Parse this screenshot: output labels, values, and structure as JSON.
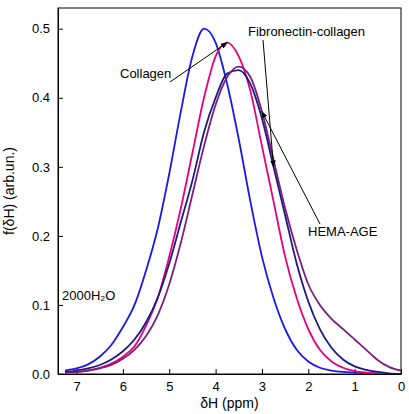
{
  "chart_data": {
    "type": "line",
    "x_label": "δH (ppm)",
    "y_label": "f(δH)  (arb.un.)",
    "x": [
      7.25,
      7,
      6.75,
      6.5,
      6.25,
      6,
      5.75,
      5.5,
      5.25,
      5,
      4.75,
      4.5,
      4.25,
      4,
      3.75,
      3.5,
      3.25,
      3,
      2.75,
      2.5,
      2.25,
      2,
      1.75,
      1.5,
      1.25,
      1,
      0.75,
      0.5,
      0.25,
      0
    ],
    "series": [
      {
        "name": "2000H₂O",
        "color": "#1a1ae6",
        "values": [
          0.005,
          0.008,
          0.014,
          0.025,
          0.042,
          0.068,
          0.1,
          0.15,
          0.21,
          0.29,
          0.38,
          0.46,
          0.5,
          0.48,
          0.42,
          0.34,
          0.25,
          0.17,
          0.11,
          0.065,
          0.035,
          0.018,
          0.009,
          0.005,
          0.003,
          0.002,
          0.001,
          0.001,
          0,
          0
        ]
      },
      {
        "name": "Collagen",
        "color": "#e6007e",
        "values": [
          0.002,
          0.003,
          0.005,
          0.009,
          0.015,
          0.025,
          0.04,
          0.07,
          0.11,
          0.17,
          0.24,
          0.32,
          0.4,
          0.46,
          0.48,
          0.46,
          0.41,
          0.33,
          0.25,
          0.17,
          0.11,
          0.065,
          0.035,
          0.018,
          0.009,
          0.004,
          0.002,
          0.001,
          0,
          0
        ]
      },
      {
        "name": "Fibronectin-collagen",
        "color": "#1a1a80",
        "values": [
          0.003,
          0.005,
          0.008,
          0.013,
          0.021,
          0.033,
          0.05,
          0.075,
          0.11,
          0.16,
          0.22,
          0.28,
          0.35,
          0.4,
          0.435,
          0.44,
          0.42,
          0.37,
          0.3,
          0.23,
          0.16,
          0.105,
          0.065,
          0.038,
          0.021,
          0.011,
          0.006,
          0.003,
          0.001,
          0
        ]
      },
      {
        "name": "HEMA-AGE",
        "color": "#7b1e7a",
        "values": [
          0.002,
          0.003,
          0.005,
          0.008,
          0.013,
          0.022,
          0.035,
          0.055,
          0.085,
          0.13,
          0.19,
          0.26,
          0.33,
          0.39,
          0.43,
          0.445,
          0.43,
          0.38,
          0.31,
          0.24,
          0.18,
          0.13,
          0.1,
          0.08,
          0.065,
          0.05,
          0.035,
          0.02,
          0.01,
          0.005
        ]
      }
    ],
    "xlim": [
      7.4,
      0
    ],
    "ylim": [
      0,
      0.53
    ],
    "xticks": [
      7,
      6,
      5,
      4,
      3,
      2,
      1,
      0
    ],
    "yticks": [
      {
        "value": 0,
        "label": "0.0"
      },
      0.1,
      0.2,
      0.3,
      0.4,
      0.5
    ],
    "grid": false
  }
}
